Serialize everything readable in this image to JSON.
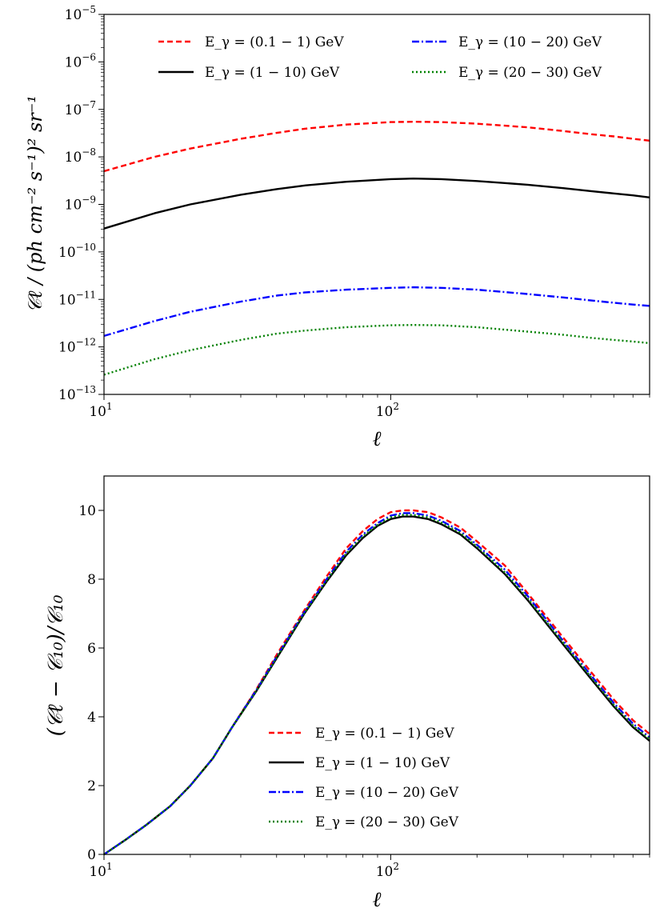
{
  "chart_data": [
    {
      "type": "line",
      "panel": "top",
      "xscale": "log",
      "yscale": "log",
      "xlim": [
        10,
        800
      ],
      "ylim": [
        1e-13,
        1e-05
      ],
      "xlabel": "ℓ",
      "ylabel": "𝒞ℓ / (ph cm⁻² s⁻¹)² sr⁻¹",
      "xticks": [
        {
          "v": 10,
          "base": "10",
          "exp": "1"
        },
        {
          "v": 100,
          "base": "10",
          "exp": "2"
        }
      ],
      "yticks": [
        {
          "v": 1e-05,
          "base": "10",
          "exp": "−5"
        },
        {
          "v": 1e-06,
          "base": "10",
          "exp": "−6"
        },
        {
          "v": 1e-07,
          "base": "10",
          "exp": "−7"
        },
        {
          "v": 1e-08,
          "base": "10",
          "exp": "−8"
        },
        {
          "v": 1e-09,
          "base": "10",
          "exp": "−9"
        },
        {
          "v": 1e-10,
          "base": "10",
          "exp": "−10"
        },
        {
          "v": 1e-11,
          "base": "10",
          "exp": "−11"
        },
        {
          "v": 1e-12,
          "base": "10",
          "exp": "−12"
        },
        {
          "v": 1e-13,
          "base": "10",
          "exp": "−13"
        }
      ],
      "legend_position": "top",
      "x": [
        10,
        15,
        20,
        30,
        40,
        50,
        70,
        100,
        120,
        150,
        200,
        300,
        400,
        500,
        600,
        700,
        800
      ],
      "series": [
        {
          "name": "E_γ = (0.1 − 1) GeV",
          "color": "#ff0000",
          "style": "dashed",
          "values": [
            5e-09,
            1e-08,
            1.5e-08,
            2.4e-08,
            3.2e-08,
            3.9e-08,
            4.8e-08,
            5.4e-08,
            5.5e-08,
            5.4e-08,
            5e-08,
            4.2e-08,
            3.5e-08,
            3e-08,
            2.7e-08,
            2.4e-08,
            2.2e-08
          ]
        },
        {
          "name": "E_γ = (1 − 10) GeV",
          "color": "#000000",
          "style": "solid",
          "values": [
            3.1e-10,
            6.5e-10,
            1e-09,
            1.6e-09,
            2.1e-09,
            2.5e-09,
            3e-09,
            3.4e-09,
            3.5e-09,
            3.4e-09,
            3.1e-09,
            2.6e-09,
            2.2e-09,
            1.9e-09,
            1.7e-09,
            1.55e-09,
            1.4e-09
          ]
        },
        {
          "name": "E_γ = (10 − 20) GeV",
          "color": "#0000ff",
          "style": "dashdot",
          "values": [
            1.7e-12,
            3.5e-12,
            5.5e-12,
            9e-12,
            1.2e-11,
            1.4e-11,
            1.6e-11,
            1.75e-11,
            1.8e-11,
            1.75e-11,
            1.6e-11,
            1.3e-11,
            1.1e-11,
            9.5e-12,
            8.5e-12,
            7.8e-12,
            7.3e-12
          ]
        },
        {
          "name": "E_γ = (20 − 30) GeV",
          "color": "#008000",
          "style": "dotted",
          "values": [
            2.6e-13,
            5.5e-13,
            8.5e-13,
            1.4e-12,
            1.9e-12,
            2.2e-12,
            2.6e-12,
            2.85e-12,
            2.9e-12,
            2.85e-12,
            2.6e-12,
            2.1e-12,
            1.8e-12,
            1.55e-12,
            1.4e-12,
            1.3e-12,
            1.2e-12
          ]
        }
      ]
    },
    {
      "type": "line",
      "panel": "bottom",
      "xscale": "log",
      "yscale": "linear",
      "xlim": [
        10,
        800
      ],
      "ylim": [
        0,
        11
      ],
      "xlabel": "ℓ",
      "ylabel": "(𝒞ℓ − 𝒞₁₀)/𝒞₁₀",
      "xticks": [
        {
          "v": 10,
          "base": "10",
          "exp": "1"
        },
        {
          "v": 100,
          "base": "10",
          "exp": "2"
        }
      ],
      "yticks": [
        {
          "v": 0,
          "label": "0"
        },
        {
          "v": 2,
          "label": "2"
        },
        {
          "v": 4,
          "label": "4"
        },
        {
          "v": 6,
          "label": "6"
        },
        {
          "v": 8,
          "label": "8"
        },
        {
          "v": 10,
          "label": "10"
        }
      ],
      "legend_position": "lower-center",
      "x": [
        10,
        12,
        14,
        17,
        20,
        24,
        28,
        34,
        40,
        50,
        60,
        70,
        80,
        90,
        100,
        110,
        120,
        135,
        150,
        175,
        200,
        250,
        300,
        400,
        500,
        600,
        700,
        800
      ],
      "series": [
        {
          "name": "E_γ = (0.1 − 1) GeV",
          "color": "#ff0000",
          "style": "dashed",
          "values": [
            0,
            0.45,
            0.85,
            1.4,
            2.0,
            2.8,
            3.7,
            4.8,
            5.8,
            7.1,
            8.1,
            8.9,
            9.4,
            9.75,
            9.95,
            10.0,
            10.0,
            9.95,
            9.8,
            9.5,
            9.1,
            8.4,
            7.6,
            6.3,
            5.3,
            4.5,
            3.9,
            3.5
          ]
        },
        {
          "name": "E_γ = (1 − 10) GeV",
          "color": "#000000",
          "style": "solid",
          "values": [
            0,
            0.45,
            0.85,
            1.4,
            2.0,
            2.8,
            3.7,
            4.75,
            5.7,
            7.0,
            7.95,
            8.7,
            9.2,
            9.55,
            9.75,
            9.82,
            9.82,
            9.75,
            9.6,
            9.3,
            8.9,
            8.15,
            7.4,
            6.1,
            5.1,
            4.3,
            3.7,
            3.3
          ]
        },
        {
          "name": "E_γ = (10 − 20) GeV",
          "color": "#0000ff",
          "style": "dashdot",
          "values": [
            0,
            0.45,
            0.85,
            1.4,
            2.0,
            2.8,
            3.7,
            4.78,
            5.75,
            7.05,
            8.02,
            8.8,
            9.3,
            9.63,
            9.85,
            9.92,
            9.92,
            9.85,
            9.7,
            9.4,
            9.0,
            8.28,
            7.52,
            6.2,
            5.2,
            4.4,
            3.8,
            3.4
          ]
        },
        {
          "name": "E_γ = (20 − 30) GeV",
          "color": "#008000",
          "style": "dotted",
          "values": [
            0,
            0.45,
            0.85,
            1.4,
            2.0,
            2.8,
            3.7,
            4.76,
            5.72,
            7.02,
            7.98,
            8.75,
            9.25,
            9.58,
            9.8,
            9.87,
            9.87,
            9.8,
            9.65,
            9.35,
            8.95,
            8.2,
            7.45,
            6.15,
            5.15,
            4.35,
            3.75,
            3.35
          ]
        }
      ]
    }
  ]
}
